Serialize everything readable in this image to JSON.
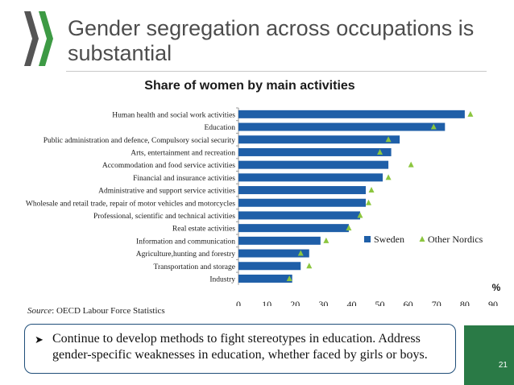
{
  "slide": {
    "title": "Gender segregation across occupations is substantial",
    "source_label": "Source",
    "source_text": ": OECD Labour Force Statistics",
    "bullet": "Continue to develop methods to fight stereotypes in education. Address gender-specific weaknesses in education, whether faced by girls or boys.",
    "page_number": "21"
  },
  "colors": {
    "sweden_bar": "#1f5fa8",
    "other_nordics_marker": "#8cc63f",
    "logo_green": "#3d9a44",
    "logo_dark": "#555555"
  },
  "chart_data": {
    "type": "bar",
    "orientation": "horizontal",
    "title": "Share of women by main activities",
    "unit_label": "%",
    "categories": [
      "Human health and social work activities",
      "Education",
      "Public administration and defence, Compulsory social security",
      "Arts, entertainment and recreation",
      "Accommodation and food service activities",
      "Financial and insurance activities",
      "Administrative and support service activities",
      "Wholesale and retail trade, repair of motor vehicles and motorcycles",
      "Professional, scientific and technical activities",
      "Real estate activities",
      "Information and communication",
      "Agriculture,hunting and forestry",
      "Transportation and storage",
      "Industry"
    ],
    "series": [
      {
        "name": "Sweden",
        "kind": "bar",
        "values": [
          80,
          73,
          57,
          54,
          53,
          51,
          45,
          45,
          43,
          39,
          29,
          25,
          22,
          19
        ]
      },
      {
        "name": "Other Nordics",
        "kind": "marker",
        "values": [
          82,
          69,
          53,
          50,
          61,
          53,
          47,
          46,
          43,
          39,
          31,
          22,
          25,
          18
        ]
      }
    ],
    "xlim": [
      0,
      90
    ],
    "xticks": [
      0,
      10,
      20,
      30,
      40,
      50,
      60,
      70,
      80,
      90
    ],
    "legend_position": "right"
  }
}
